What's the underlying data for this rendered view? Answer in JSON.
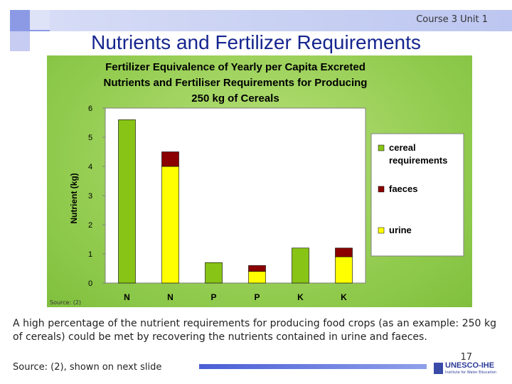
{
  "header": {
    "course": "Course 3 Unit 1",
    "title": "Nutrients and Fertilizer Requirements"
  },
  "chart_data": {
    "type": "bar",
    "stacked": true,
    "title_lines": [
      "Fertilizer Equivalence of Yearly per Capita Excreted",
      "Nutrients and Fertiliser Requirements for Producing",
      "250 kg of Cereals"
    ],
    "ylabel": "Nutrient (kg)",
    "ylim": [
      0,
      6
    ],
    "yticks": [
      0,
      1,
      2,
      3,
      4,
      5,
      6
    ],
    "categories": [
      "N",
      "N",
      "P",
      "P",
      "K",
      "K"
    ],
    "series": [
      {
        "name": "cereal requirements",
        "color": "#88c416",
        "values": [
          5.6,
          0,
          0.7,
          0,
          1.2,
          0
        ]
      },
      {
        "name": "urine",
        "color": "#ffff00",
        "values": [
          0,
          4.0,
          0,
          0.4,
          0,
          0.9
        ]
      },
      {
        "name": "faeces",
        "color": "#8b0000",
        "values": [
          0,
          0.5,
          0,
          0.2,
          0,
          0.3
        ]
      }
    ],
    "legend_position": "right",
    "legend_order": [
      "cereal requirements",
      "faeces",
      "urine"
    ],
    "grid": false,
    "source_note": "Source: (2)"
  },
  "body": {
    "paragraph": "A high percentage of the nutrient requirements for producing food crops (as an example: 250 kg of cereals) could be met by recovering the nutrients contained in urine and faeces.",
    "source": "Source: (2), shown on next slide",
    "page_number": "17"
  },
  "logo": {
    "name": "UNESCO-IHE",
    "subtitle": "Institute for Water Education"
  }
}
